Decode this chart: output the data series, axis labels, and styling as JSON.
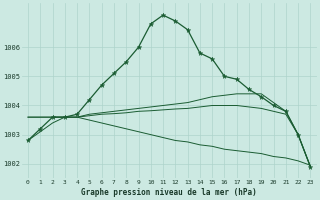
{
  "title": "Graphe pression niveau de la mer (hPa)",
  "background_color": "#cce9e2",
  "grid_color": "#aed4cc",
  "line_color": "#1a5c32",
  "ylim": [
    1001.5,
    1007.5
  ],
  "yticks": [
    1002,
    1003,
    1004,
    1005,
    1006
  ],
  "xlim": [
    -0.5,
    23.5
  ],
  "x_labels": [
    "0",
    "1",
    "2",
    "3",
    "4",
    "5",
    "6",
    "7",
    "8",
    "9",
    "10",
    "11",
    "12",
    "13",
    "14",
    "15",
    "16",
    "17",
    "18",
    "19",
    "20",
    "21",
    "22",
    "23"
  ],
  "series1": [
    1002.8,
    1003.2,
    1003.6,
    1003.6,
    1003.7,
    1004.2,
    1004.7,
    1005.1,
    1005.5,
    1006.0,
    1006.8,
    1007.1,
    1006.9,
    1006.6,
    1005.8,
    1005.6,
    1005.0,
    1004.9,
    1004.55,
    1004.3,
    1004.0,
    1003.8,
    1003.0,
    1001.9
  ],
  "series2": [
    1003.6,
    1003.6,
    1003.6,
    1003.6,
    1003.6,
    1003.7,
    1003.75,
    1003.8,
    1003.85,
    1003.9,
    1003.95,
    1004.0,
    1004.05,
    1004.1,
    1004.2,
    1004.3,
    1004.35,
    1004.4,
    1004.4,
    1004.4,
    1004.1,
    1003.8,
    1003.0,
    1001.9
  ],
  "series3": [
    1003.6,
    1003.6,
    1003.6,
    1003.6,
    1003.6,
    1003.65,
    1003.7,
    1003.72,
    1003.75,
    1003.8,
    1003.82,
    1003.85,
    1003.88,
    1003.9,
    1003.95,
    1004.0,
    1004.0,
    1004.0,
    1003.95,
    1003.9,
    1003.8,
    1003.7,
    1003.0,
    1001.9
  ],
  "series4": [
    1002.8,
    1003.1,
    1003.4,
    1003.6,
    1003.6,
    1003.5,
    1003.4,
    1003.3,
    1003.2,
    1003.1,
    1003.0,
    1002.9,
    1002.8,
    1002.75,
    1002.65,
    1002.6,
    1002.5,
    1002.45,
    1002.4,
    1002.35,
    1002.25,
    1002.2,
    1002.1,
    1001.95
  ]
}
